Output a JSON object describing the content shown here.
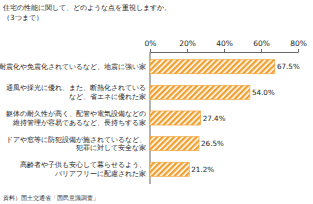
{
  "chart_data": {
    "type": "bar",
    "orientation": "horizontal",
    "title": "住宅の性能に関して、どのような点を重視しますか。",
    "subtitle": "（3つまで）",
    "annotations": [
      "資料）国土交通省「国民意識調査」"
    ],
    "categories": [
      "耐震化や免震化されているなど、地震に強い家",
      "通風や採光に優れ、また、断熱化されている\nなど、省エネに優れた家",
      "躯体の耐久性が高く、配管や電気設備などの\n維持管理が容易であるなど、長持ちする家",
      "ドアや窓等に防犯設備が施されているなど、\n犯罪に対して安全な家",
      "高齢者や子供も安心して暮らせるよう、\nバリアフリーに配慮された家"
    ],
    "values": [
      67.5,
      54.0,
      27.4,
      26.5,
      21.2
    ],
    "value_labels": [
      "67.5%",
      "54.0%",
      "27.4%",
      "26.5%",
      "21.2%"
    ],
    "data_labels": true,
    "color": "#f0a030",
    "xlim": [
      0,
      80
    ],
    "xticks": [
      {
        "value": 0,
        "label": "0%"
      },
      {
        "value": 20,
        "label": "20%"
      },
      {
        "value": 40,
        "label": "40%"
      },
      {
        "value": 60,
        "label": "60%"
      },
      {
        "value": 80,
        "label": "80%"
      }
    ],
    "grid": false
  }
}
